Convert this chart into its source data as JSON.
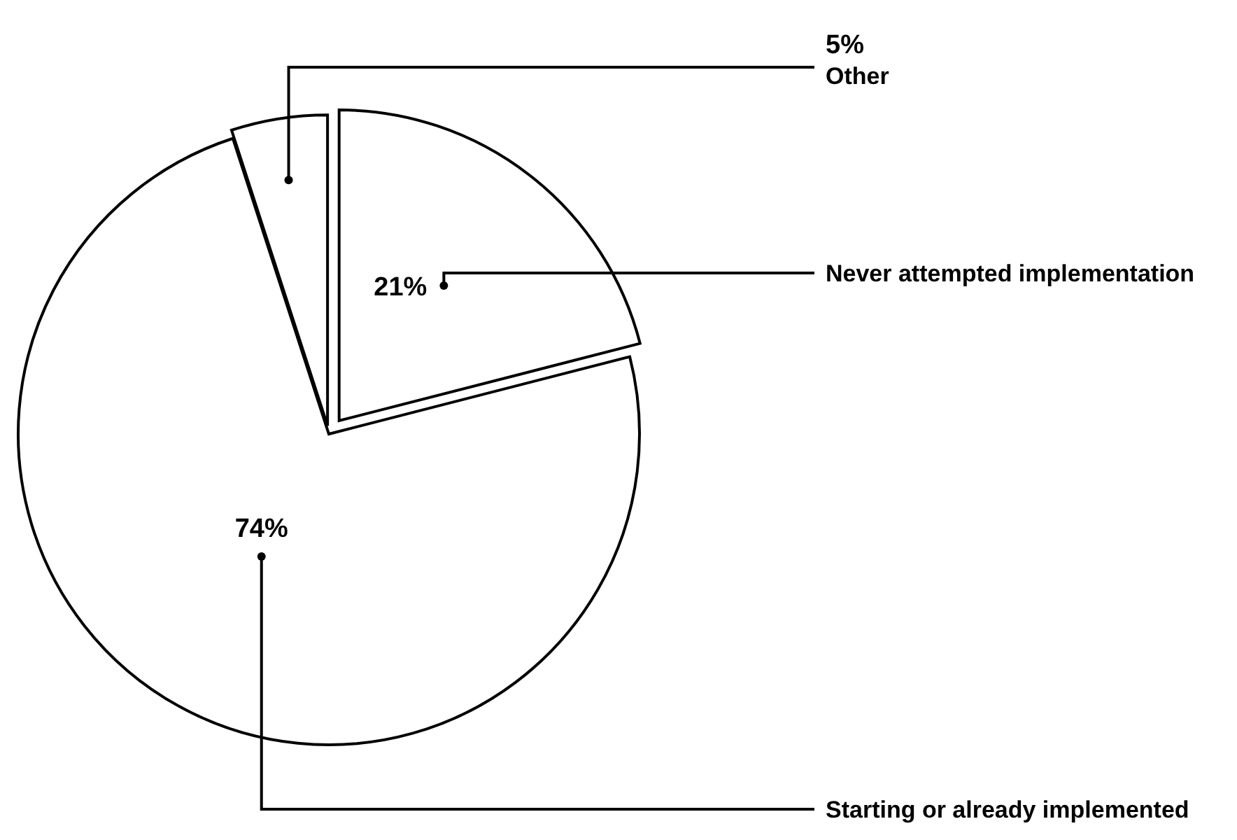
{
  "chart_data": {
    "type": "pie",
    "categories": [
      "Never attempted implementation",
      "Starting or already implemented",
      "Other"
    ],
    "values": [
      21,
      74,
      5
    ],
    "colors": [
      "#ffffff",
      "#ffffff",
      "#ffffff"
    ],
    "value_labels": [
      "21%",
      "74%",
      "5%"
    ]
  }
}
